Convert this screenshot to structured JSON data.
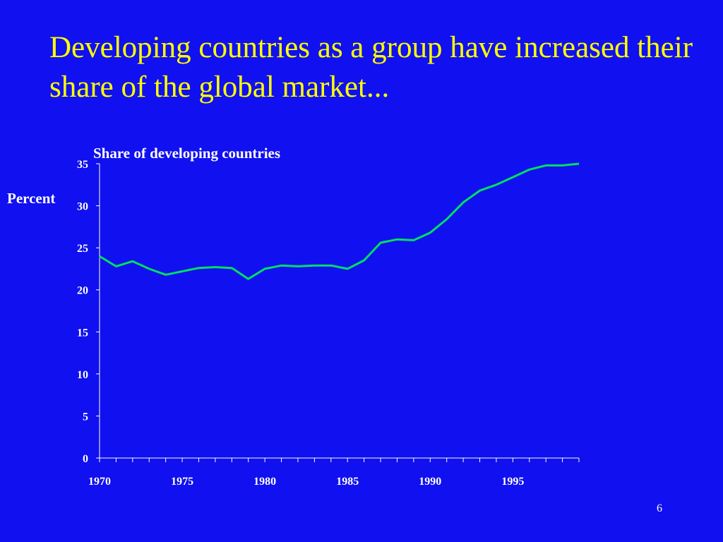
{
  "slide": {
    "title": "Developing countries as a group have increased their share of the global market...",
    "page_number": "6",
    "background_color": "#1010F0",
    "title_color": "#FFFF00"
  },
  "chart_data": {
    "type": "line",
    "title": "Share of developing countries",
    "xlabel": "",
    "ylabel": "Percent",
    "xlim": [
      1970,
      1999
    ],
    "ylim": [
      0,
      35
    ],
    "y_ticks": [
      0,
      5,
      10,
      15,
      20,
      25,
      30,
      35
    ],
    "x_tick_labels": [
      "1970",
      "1975",
      "1980",
      "1985",
      "1990",
      "1995"
    ],
    "grid": false,
    "line_color": "#00E060",
    "series": [
      {
        "x": [
          1970,
          1971,
          1972,
          1973,
          1974,
          1975,
          1976,
          1977,
          1978,
          1979,
          1980,
          1981,
          1982,
          1983,
          1984,
          1985,
          1986,
          1987,
          1988,
          1989,
          1990,
          1991,
          1992,
          1993,
          1994,
          1995,
          1996,
          1997,
          1998,
          1999
        ],
        "values": [
          24.0,
          22.8,
          23.4,
          22.5,
          21.8,
          22.2,
          22.6,
          22.7,
          22.6,
          21.3,
          22.5,
          22.9,
          22.8,
          22.9,
          22.9,
          22.5,
          23.5,
          25.6,
          26.0,
          25.9,
          26.8,
          28.4,
          30.4,
          31.8,
          32.5,
          33.4,
          34.3,
          34.8,
          34.8,
          35.0
        ]
      }
    ]
  }
}
